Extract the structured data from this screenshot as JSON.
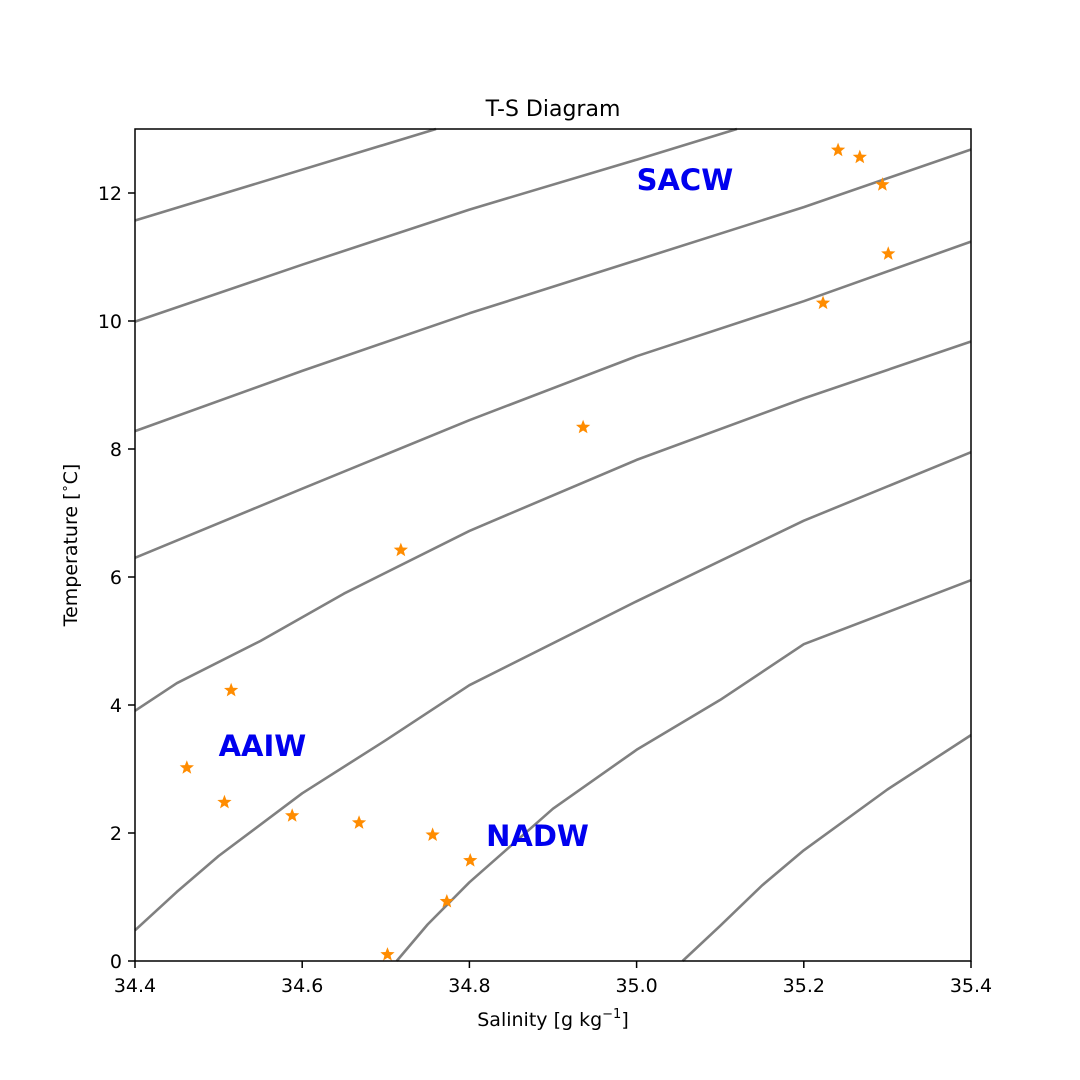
{
  "chart_data": {
    "type": "scatter",
    "title": "T-S Diagram",
    "xlabel": "Salinity [g kg",
    "xlabel_sup": "−1",
    "xlabel_end": "]",
    "ylabel": "Temperature [",
    "ylabel_sup": "∘",
    "ylabel_end": "C]",
    "xlim": [
      34.4,
      35.4
    ],
    "ylim": [
      0,
      13
    ],
    "x_ticks": [
      34.4,
      34.6,
      34.8,
      35.0,
      35.2,
      35.4
    ],
    "x_tick_labels": [
      "34.4",
      "34.6",
      "34.8",
      "35.0",
      "35.2",
      "35.4"
    ],
    "y_ticks": [
      0,
      2,
      4,
      6,
      8,
      10,
      12
    ],
    "y_tick_labels": [
      "0",
      "2",
      "4",
      "6",
      "8",
      "10",
      "12"
    ],
    "grid": false,
    "marker": "star",
    "marker_color": "#ff8c00",
    "contour_color": "#808080",
    "annotation_color": "#0000ee",
    "points": [
      {
        "x": 34.462,
        "y": 3.02
      },
      {
        "x": 34.507,
        "y": 2.48
      },
      {
        "x": 34.515,
        "y": 4.23
      },
      {
        "x": 34.588,
        "y": 2.27
      },
      {
        "x": 34.668,
        "y": 2.16
      },
      {
        "x": 34.702,
        "y": 0.1
      },
      {
        "x": 34.718,
        "y": 6.42
      },
      {
        "x": 34.756,
        "y": 1.97
      },
      {
        "x": 34.773,
        "y": 0.93
      },
      {
        "x": 34.801,
        "y": 1.57
      },
      {
        "x": 34.936,
        "y": 8.34
      },
      {
        "x": 35.223,
        "y": 10.28
      },
      {
        "x": 35.241,
        "y": 12.67
      },
      {
        "x": 35.267,
        "y": 12.56
      },
      {
        "x": 35.294,
        "y": 12.13
      },
      {
        "x": 35.301,
        "y": 11.05
      }
    ],
    "isopycnals": [
      [
        [
          34.4,
          11.57
        ],
        [
          34.76,
          13.0
        ]
      ],
      [
        [
          34.4,
          9.99
        ],
        [
          34.6,
          10.88
        ],
        [
          34.8,
          11.74
        ],
        [
          35.0,
          12.52
        ],
        [
          35.12,
          13.0
        ]
      ],
      [
        [
          34.4,
          8.28
        ],
        [
          34.6,
          9.22
        ],
        [
          34.8,
          10.12
        ],
        [
          35.0,
          10.95
        ],
        [
          35.2,
          11.78
        ],
        [
          35.4,
          12.68
        ]
      ],
      [
        [
          34.4,
          6.3
        ],
        [
          34.6,
          7.38
        ],
        [
          34.8,
          8.45
        ],
        [
          35.0,
          9.45
        ],
        [
          35.2,
          10.31
        ],
        [
          35.4,
          11.24
        ]
      ],
      [
        [
          34.4,
          3.91
        ],
        [
          34.45,
          4.34
        ],
        [
          34.55,
          5.0
        ],
        [
          34.65,
          5.74
        ],
        [
          34.8,
          6.72
        ],
        [
          35.0,
          7.83
        ],
        [
          35.2,
          8.79
        ],
        [
          35.4,
          9.68
        ]
      ],
      [
        [
          34.4,
          0.48
        ],
        [
          34.45,
          1.08
        ],
        [
          34.5,
          1.64
        ],
        [
          34.6,
          2.62
        ],
        [
          34.7,
          3.45
        ],
        [
          34.8,
          4.31
        ],
        [
          35.0,
          5.62
        ],
        [
          35.2,
          6.88
        ],
        [
          35.4,
          7.95
        ]
      ],
      [
        [
          34.713,
          0.0
        ],
        [
          34.75,
          0.57
        ],
        [
          34.8,
          1.23
        ],
        [
          34.9,
          2.38
        ],
        [
          35.0,
          3.3
        ],
        [
          35.1,
          4.08
        ],
        [
          35.2,
          4.95
        ],
        [
          35.4,
          5.95
        ]
      ],
      [
        [
          35.055,
          0.0
        ],
        [
          35.1,
          0.55
        ],
        [
          35.15,
          1.18
        ],
        [
          35.2,
          1.73
        ],
        [
          35.3,
          2.68
        ],
        [
          35.4,
          3.53
        ]
      ]
    ],
    "annotations": [
      {
        "text": "SACW",
        "x": 35.0,
        "y": 12.05
      },
      {
        "text": "AAIW",
        "x": 34.5,
        "y": 3.2
      },
      {
        "text": "NADW",
        "x": 34.82,
        "y": 1.8
      }
    ]
  }
}
